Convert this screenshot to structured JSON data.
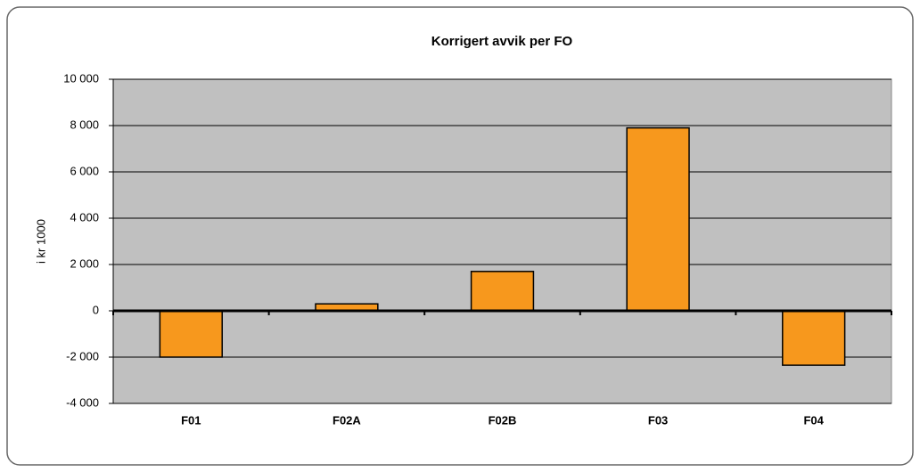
{
  "chart_data": {
    "type": "bar",
    "title": "Korrigert avvik per FO",
    "y_label": "i kr 1000",
    "categories": [
      "F01",
      "F02A",
      "F02B",
      "F03",
      "F04"
    ],
    "values": [
      -2000,
      300,
      1700,
      7900,
      -2350
    ],
    "color": "#f7981d",
    "ylim": [
      -4000,
      10000
    ],
    "yticks": [
      {
        "value": -4000,
        "label": "-4 000"
      },
      {
        "value": -2000,
        "label": "-2 000"
      },
      0,
      {
        "value": 2000,
        "label": "2 000"
      },
      {
        "value": 4000,
        "label": "4 000"
      },
      {
        "value": 6000,
        "label": "6 000"
      },
      {
        "value": 8000,
        "label": "8 000"
      },
      {
        "value": 10000,
        "label": "10 000"
      }
    ],
    "grid": true
  }
}
